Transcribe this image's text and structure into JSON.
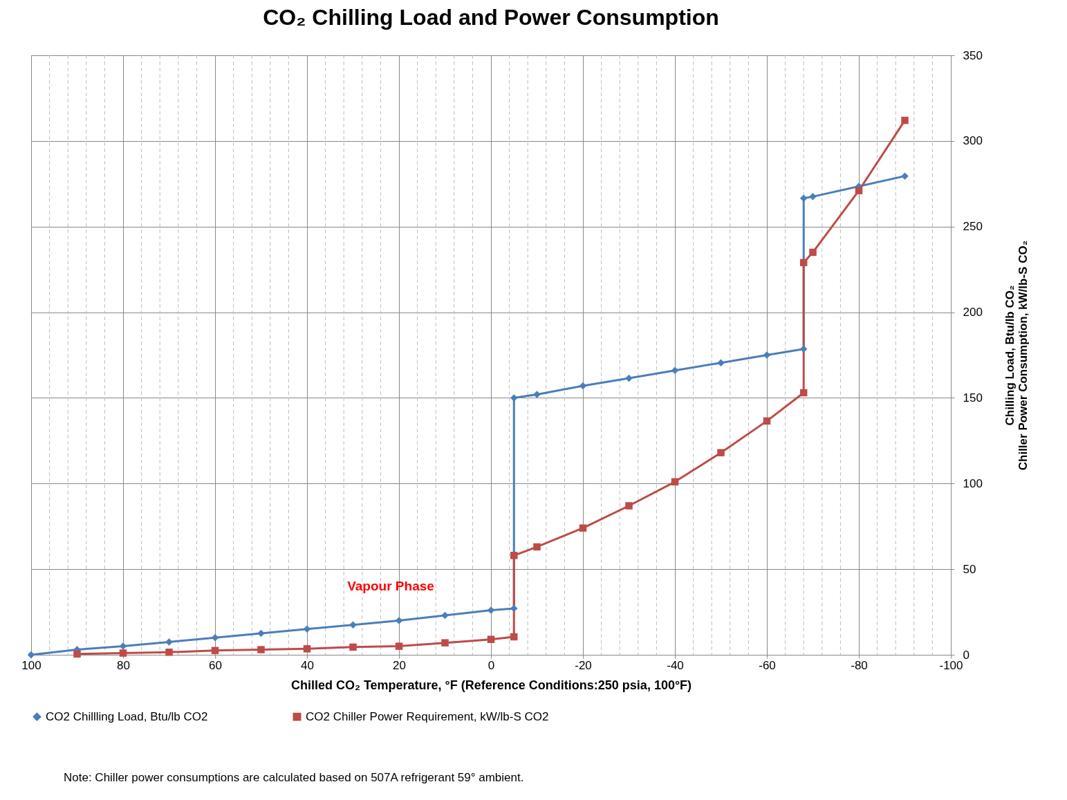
{
  "chart_data": {
    "type": "line",
    "title": "CO₂ Chilling Load and Power Consumption",
    "xlabel": "Chilled CO₂ Temperature, °F (Reference Conditions:250 psia, 100°F)",
    "ylabel": "Chilling Load, Btu/lb CO₂\nChiller Power Consumption, kW/lb-S CO₂",
    "x": [
      100,
      90,
      80,
      70,
      60,
      50,
      40,
      30,
      20,
      10,
      0,
      -5,
      -5,
      -10,
      -20,
      -30,
      -40,
      -50,
      -60,
      -68,
      -68,
      -70,
      -80,
      -90
    ],
    "series": [
      {
        "name": "CO2 Chillling Load, Btu/lb CO2",
        "color": "#4a7ebb",
        "marker": "diamond",
        "values": [
          0,
          3,
          5,
          7.5,
          10,
          12.5,
          15,
          17.5,
          20,
          23,
          26,
          27,
          150,
          152,
          157,
          161.5,
          166,
          170.5,
          175,
          178.5,
          266.5,
          267.5,
          273.5,
          279.5
        ]
      },
      {
        "name": "CO2 Chiller Power Requirement, kW/lb-S CO2",
        "color": "#be4b48",
        "marker": "square",
        "x": [
          90,
          80,
          70,
          60,
          50,
          40,
          30,
          20,
          10,
          0,
          -5,
          -5,
          -10,
          -20,
          -30,
          -40,
          -50,
          -60,
          -68,
          -68,
          -70,
          -80,
          -90
        ],
        "values": [
          0.5,
          1,
          1.5,
          2.5,
          3,
          3.5,
          4.5,
          5,
          7,
          9,
          10.5,
          58,
          63,
          74,
          87,
          101,
          118,
          136.5,
          153,
          229,
          235,
          271,
          312
        ]
      }
    ],
    "xlim": [
      100,
      -100
    ],
    "xticks": [
      100,
      {
        "value": 96,
        "label": null
      },
      {
        "value": 92,
        "label": null
      },
      {
        "value": 88,
        "label": null
      },
      {
        "value": 84,
        "label": null
      },
      80,
      {
        "value": 76,
        "label": null
      },
      {
        "value": 72,
        "label": null
      },
      {
        "value": 68,
        "label": null
      },
      {
        "value": 64,
        "label": null
      },
      60,
      {
        "value": 56,
        "label": null
      },
      {
        "value": 52,
        "label": null
      },
      {
        "value": 48,
        "label": null
      },
      {
        "value": 44,
        "label": null
      },
      40,
      {
        "value": 36,
        "label": null
      },
      {
        "value": 32,
        "label": null
      },
      {
        "value": 28,
        "label": null
      },
      {
        "value": 24,
        "label": null
      },
      20,
      {
        "value": 16,
        "label": null
      },
      {
        "value": 12,
        "label": null
      },
      {
        "value": 8,
        "label": null
      },
      {
        "value": 4,
        "label": null
      },
      0,
      {
        "value": -4,
        "label": null
      },
      {
        "value": -8,
        "label": null
      },
      {
        "value": -12,
        "label": null
      },
      {
        "value": -16,
        "label": null
      },
      -20,
      {
        "value": -24,
        "label": null
      },
      {
        "value": -28,
        "label": null
      },
      {
        "value": -32,
        "label": null
      },
      {
        "value": -36,
        "label": null
      },
      -40,
      {
        "value": -44,
        "label": null
      },
      {
        "value": -48,
        "label": null
      },
      {
        "value": -52,
        "label": null
      },
      {
        "value": -56,
        "label": null
      },
      -60,
      {
        "value": -64,
        "label": null
      },
      {
        "value": -68,
        "label": null
      },
      {
        "value": -72,
        "label": null
      },
      {
        "value": -76,
        "label": null
      },
      -80,
      {
        "value": -84,
        "label": null
      },
      {
        "value": -88,
        "label": null
      },
      {
        "value": -92,
        "label": null
      },
      {
        "value": -96,
        "label": null
      },
      -100
    ],
    "ylim": [
      0,
      350
    ],
    "yticks": [
      0,
      50,
      100,
      150,
      200,
      250,
      300,
      350
    ],
    "grid": true,
    "legend": "bottom",
    "line_style": "solid",
    "annotations": [
      "Vapour Phase",
      "Note:  Chiller power consumptions are calculated based on 507A refrigerant 59° ambient."
    ]
  }
}
